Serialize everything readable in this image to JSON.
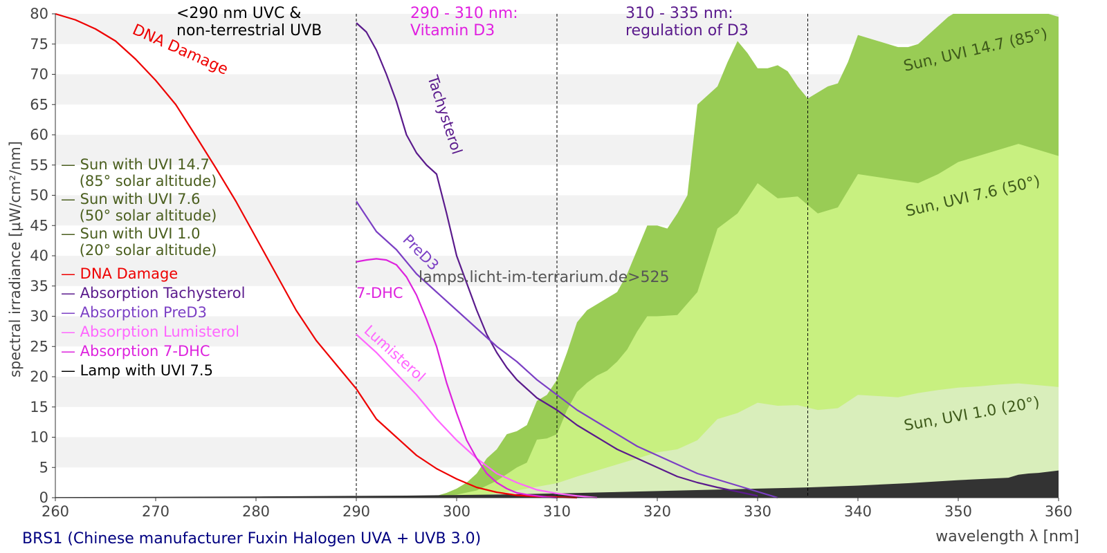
{
  "footer": {
    "caption": "BRS1 (Chinese manufacturer Fuxin Halogen UVA + UVB 3.0)",
    "caption_color": "#000080"
  },
  "watermark": "lamps.licht-im-terrarium.de>525",
  "chart_data": {
    "type": "area",
    "title": "",
    "xlabel": "wavelength λ [nm]",
    "ylabel": "spectral irradiance [µW/cm²/nm]",
    "xlim": [
      260,
      360
    ],
    "ylim": [
      0,
      80
    ],
    "x_ticks": [
      260,
      270,
      280,
      290,
      300,
      310,
      320,
      330,
      340,
      350,
      360
    ],
    "y_ticks": [
      0,
      5,
      10,
      15,
      20,
      25,
      30,
      35,
      40,
      45,
      50,
      55,
      60,
      65,
      70,
      75,
      80
    ],
    "grid": "horizontal bands",
    "band_color": "#f2f2f2",
    "vlines": [
      290,
      310,
      335
    ],
    "regions": [
      {
        "text": "<290 nm UVC &\nnon-terrestrial UVB",
        "color": "#000000"
      },
      {
        "text": "290 - 310 nm:\nVitamin D3",
        "color": "#e01fe0"
      },
      {
        "text": "310 - 335 nm:\nregulation of D3",
        "color": "#5a1a8c"
      }
    ],
    "legend": {
      "position": "left",
      "entries": [
        {
          "text": "— Sun with UVI 14.7\n    (85° solar altitude)",
          "color": "#4a5e1e"
        },
        {
          "text": "— Sun with UVI 7.6\n    (50° solar altitude)",
          "color": "#4a5e1e"
        },
        {
          "text": "— Sun with UVI 1.0\n    (20° solar altitude)",
          "color": "#4a5e1e"
        },
        {
          "text": "— DNA Damage",
          "color": "#ee0000"
        },
        {
          "text": "— Absorption Tachysterol",
          "color": "#5a1a8c"
        },
        {
          "text": "— Absorption PreD3",
          "color": "#7b3fc4"
        },
        {
          "text": "— Absorption Lumisterol",
          "color": "#ff66ff"
        },
        {
          "text": "— Absorption 7-DHC",
          "color": "#dd22dd"
        },
        {
          "text": "— Lamp with UVI 7.5",
          "color": "#000000"
        }
      ]
    },
    "areas": [
      {
        "name": "Sun, UVI 14.7 (85°)",
        "color": "#99cc55",
        "label_color": "#3e5a1a",
        "x": [
          296,
          298,
          299,
          300,
          301,
          302,
          303,
          304,
          305,
          306,
          307,
          308,
          309,
          310,
          311,
          312,
          313,
          314,
          315,
          316,
          317,
          318,
          319,
          320,
          321,
          322,
          323,
          324,
          325,
          326,
          327,
          328,
          329,
          330,
          331,
          332,
          333,
          334,
          335,
          336,
          337,
          338,
          339,
          340,
          341,
          342,
          343,
          344,
          345,
          346,
          347,
          348,
          349,
          350,
          351,
          352,
          353,
          354,
          355,
          356,
          357,
          358,
          359,
          360
        ],
        "y": [
          0,
          0.3,
          0.8,
          1.5,
          2.5,
          4,
          6.5,
          8,
          10.5,
          11,
          12,
          16,
          17,
          19.5,
          24,
          29,
          31,
          32,
          33,
          34,
          37,
          41,
          45,
          45,
          44.5,
          47,
          50,
          65,
          66.5,
          68,
          72,
          75.5,
          73.5,
          71,
          71,
          71.5,
          70.5,
          68,
          66,
          67,
          68,
          68.5,
          72,
          76.5,
          76,
          75.5,
          75,
          74.5,
          74.5,
          75,
          76.5,
          78,
          79.5,
          80.5,
          81.5,
          82.5,
          83,
          83.5,
          84,
          83,
          82,
          81,
          80,
          79.5
        ]
      },
      {
        "name": "Sun, UVI 7.6 (50°)",
        "color": "#c8f080",
        "label_color": "#3e5a1a",
        "x": [
          296,
          298,
          300,
          302,
          304,
          306,
          307,
          308,
          309,
          310,
          311,
          312,
          313,
          314,
          315,
          316,
          317,
          318,
          319,
          320,
          322,
          324,
          326,
          328,
          330,
          332,
          334,
          336,
          338,
          340,
          342,
          344,
          346,
          348,
          350,
          352,
          354,
          356,
          358,
          360
        ],
        "y": [
          0,
          0.2,
          0.5,
          1.2,
          2.8,
          5,
          5.8,
          9.6,
          9.8,
          10.5,
          14.5,
          17.5,
          19,
          20.2,
          21,
          22.5,
          24.5,
          27.5,
          30,
          30,
          30.2,
          34,
          44.5,
          47,
          52,
          49.5,
          49.8,
          47,
          48,
          53.5,
          53,
          52.5,
          52,
          53.5,
          55.5,
          56.5,
          57.5,
          58.5,
          57.5,
          56.5
        ]
      },
      {
        "name": "Sun, UVI 1.0 (20°)",
        "color": "#d9eebb",
        "label_color": "#3e5a1a",
        "x": [
          300,
          302,
          304,
          306,
          308,
          310,
          312,
          314,
          316,
          318,
          320,
          322,
          324,
          326,
          328,
          330,
          332,
          334,
          336,
          338,
          340,
          342,
          344,
          346,
          348,
          350,
          352,
          354,
          356,
          358,
          360
        ],
        "y": [
          0,
          0.3,
          0.7,
          1.2,
          1.8,
          2.4,
          3.5,
          4.5,
          5.5,
          6.5,
          7.5,
          8,
          9.5,
          13,
          14,
          15.7,
          15.2,
          15.3,
          14.5,
          14.8,
          17,
          16.8,
          16.6,
          17.3,
          17.8,
          18.2,
          18.4,
          18.7,
          18.9,
          18.6,
          18.3
        ]
      },
      {
        "name": "Lamp with UVI 7.5",
        "color": "#333333",
        "label_color": "#000000",
        "x": [
          260,
          270,
          280,
          290,
          295,
          300,
          305,
          310,
          315,
          320,
          325,
          330,
          335,
          340,
          345,
          350,
          355,
          356,
          357,
          358,
          359,
          360
        ],
        "y": [
          0.1,
          0.15,
          0.2,
          0.3,
          0.35,
          0.45,
          0.55,
          0.7,
          0.9,
          1.1,
          1.3,
          1.5,
          1.7,
          2,
          2.4,
          2.9,
          3.3,
          3.8,
          4,
          4.1,
          4.3,
          4.5
        ]
      }
    ],
    "series": [
      {
        "name": "DNA Damage",
        "color": "#ee0000",
        "x": [
          260,
          262,
          264,
          266,
          268,
          270,
          272,
          274,
          276,
          278,
          280,
          282,
          284,
          286,
          288,
          290,
          292,
          294,
          296,
          298,
          300,
          302,
          304,
          306,
          308,
          310,
          312
        ],
        "y": [
          80,
          79,
          77.5,
          75.5,
          72.5,
          69,
          65,
          59.8,
          54.5,
          49,
          43,
          37,
          31,
          26,
          22,
          18,
          13,
          10,
          7,
          4.8,
          3.1,
          1.7,
          0.9,
          0.4,
          0.2,
          0.1,
          0
        ]
      },
      {
        "name": "Tachysterol",
        "color": "#5a1a8c",
        "x": [
          290,
          291,
          292,
          293,
          294,
          295,
          296,
          297,
          298,
          299,
          300,
          301,
          302,
          303,
          304,
          305,
          306,
          307,
          308,
          309,
          310,
          312,
          314,
          316,
          318,
          320,
          322,
          324,
          326,
          328,
          330
        ],
        "y": [
          78.5,
          77,
          74,
          70,
          65.5,
          60,
          57,
          55,
          53.5,
          47,
          40,
          35.5,
          31,
          27,
          24,
          21.5,
          19.5,
          18,
          16.5,
          15.5,
          14.5,
          12,
          10,
          8,
          6.5,
          5,
          3.5,
          2.5,
          1.7,
          1,
          0.3
        ]
      },
      {
        "name": "PreD3",
        "color": "#7b3fc4",
        "x": [
          290,
          292,
          294,
          296,
          298,
          300,
          302,
          304,
          306,
          308,
          310,
          312,
          314,
          316,
          318,
          320,
          322,
          324,
          326,
          328,
          330,
          332
        ],
        "y": [
          49,
          44,
          41,
          37,
          34,
          31,
          28,
          25,
          22.5,
          19.5,
          17,
          14.5,
          12.5,
          10.5,
          8.5,
          7,
          5.5,
          4,
          3,
          2,
          1,
          0
        ]
      },
      {
        "name": "Lumisterol",
        "color": "#ff66ff",
        "x": [
          290,
          292,
          294,
          296,
          298,
          300,
          302,
          304,
          306,
          308,
          310,
          312,
          314
        ],
        "y": [
          27,
          24,
          20.5,
          17,
          13,
          9.5,
          6.5,
          4,
          2.5,
          1.3,
          0.7,
          0.3,
          0
        ]
      },
      {
        "name": "7-DHC",
        "color": "#dd22dd",
        "x": [
          290,
          291,
          292,
          293,
          294,
          295,
          296,
          297,
          298,
          299,
          300,
          301,
          302,
          303,
          304,
          305,
          306,
          307,
          308,
          309,
          310
        ],
        "y": [
          39,
          39.3,
          39.5,
          39.3,
          38.5,
          36.5,
          33.5,
          29.5,
          25,
          19,
          14,
          9.5,
          6.5,
          4,
          2.5,
          1.5,
          0.8,
          0.5,
          0.3,
          0.1,
          0
        ]
      }
    ]
  }
}
